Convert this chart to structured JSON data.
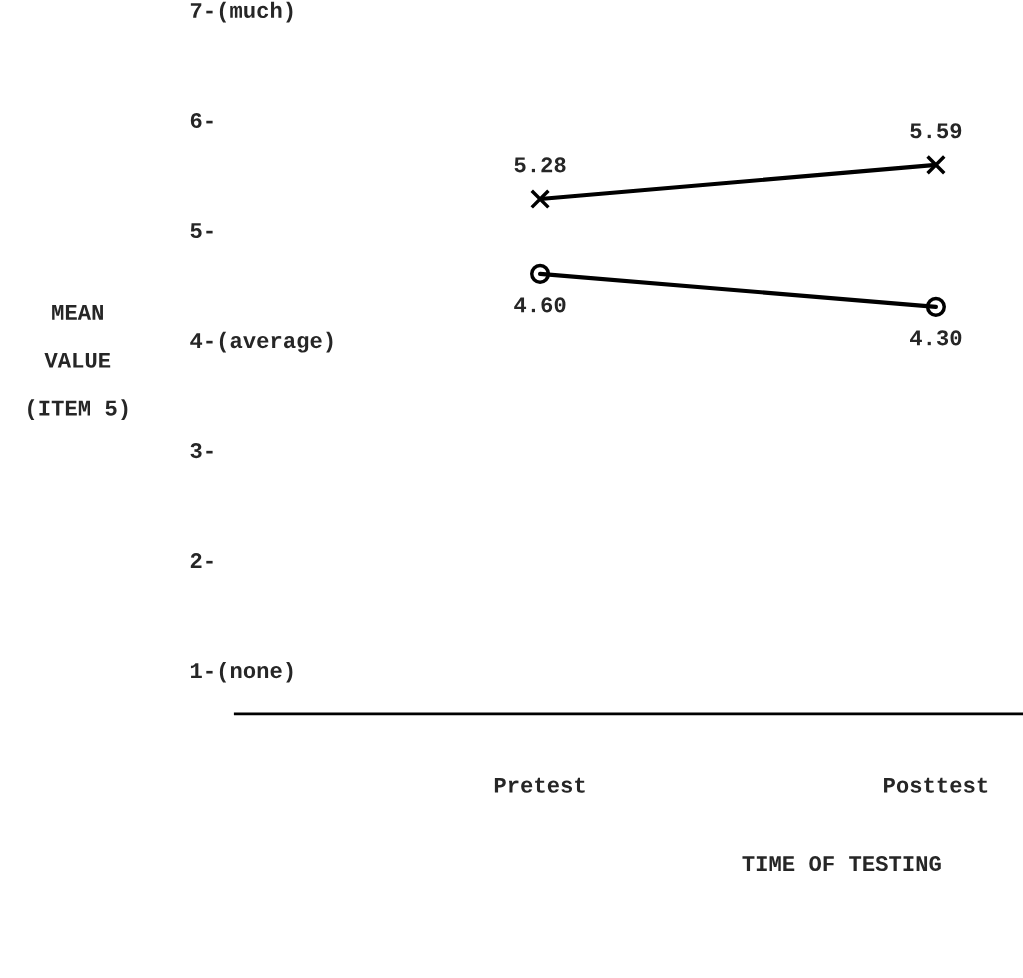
{
  "chart_data": {
    "type": "line",
    "xlabel": "TIME OF TESTING",
    "ylabel": "MEAN\n\nVALUE\n\n(ITEM 5)",
    "categories": [
      "Pretest",
      "Posttest"
    ],
    "series": [
      {
        "color": "#000000",
        "marker": "cross",
        "values": [
          5.28,
          5.59
        ],
        "value_labels": [
          "5.28",
          "5.59"
        ]
      },
      {
        "color": "#000000",
        "marker": "circle",
        "values": [
          4.6,
          4.3
        ],
        "value_labels": [
          "4.60",
          "4.30"
        ]
      }
    ],
    "ylim": [
      0.6,
      7.0
    ],
    "yticks": [
      {
        "value": 1,
        "label": "1-(none)"
      },
      {
        "value": 2,
        "label": "2-"
      },
      {
        "value": 3,
        "label": "3-"
      },
      {
        "value": 4,
        "label": "4-(average)"
      },
      {
        "value": 5,
        "label": "5-"
      },
      {
        "value": 6,
        "label": "6-"
      },
      {
        "value": 7,
        "label": "7-(much)"
      }
    ],
    "grid": false,
    "legend": false,
    "line_style": "solid"
  }
}
